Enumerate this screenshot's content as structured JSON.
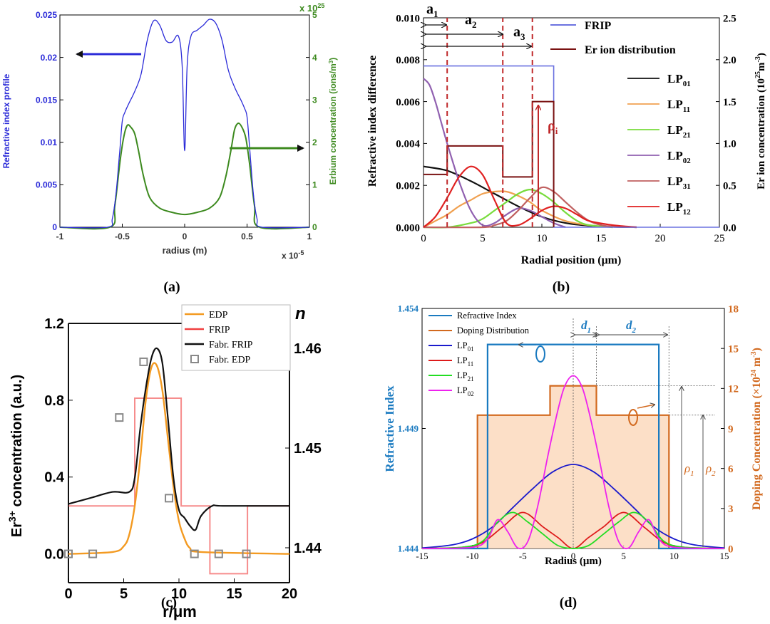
{
  "chart_data": [
    {
      "panel": "(a)",
      "type": "line",
      "xlabel": "radius (m)",
      "x_exponent": "x 10",
      "x_exponent_power": "-5",
      "ylabel_left": "Refractive index profile",
      "ylabel_right": "Erbium concentration (ions/m",
      "ylabel_right_tail": "3",
      "ylabel_right_close": ")",
      "y2_exponent": "x 10",
      "y2_exponent_power": "25",
      "xlim": [
        -1,
        1
      ],
      "ylim": [
        0,
        0.025
      ],
      "y2lim": [
        0,
        5
      ],
      "xticks": [
        "-1",
        "-0.5",
        "0",
        "0.5",
        "1"
      ],
      "yticks": [
        "0",
        "0.005",
        "0.01",
        "0.015",
        "0.02",
        "0.025"
      ],
      "y2ticks": [
        "0",
        "1",
        "2",
        "3",
        "4",
        "5"
      ],
      "colors": {
        "left": "#2b2bd8",
        "right": "#3d8a1f"
      },
      "series": [
        {
          "name": "Refractive index profile",
          "axis": "left",
          "x": [
            -1,
            -0.62,
            -0.58,
            -0.55,
            -0.52,
            -0.5,
            -0.48,
            -0.45,
            -0.4,
            -0.35,
            -0.3,
            -0.25,
            -0.2,
            -0.15,
            -0.1,
            -0.05,
            -0.02,
            0,
            0.02,
            0.05,
            0.1,
            0.15,
            0.2,
            0.25,
            0.3,
            0.35,
            0.4,
            0.45,
            0.48,
            0.5,
            0.52,
            0.55,
            0.58,
            0.62,
            1
          ],
          "y": [
            0,
            0,
            0.001,
            0.004,
            0.009,
            0.0125,
            0.0135,
            0.0145,
            0.016,
            0.018,
            0.022,
            0.0243,
            0.0238,
            0.022,
            0.0218,
            0.0225,
            0.019,
            0.009,
            0.019,
            0.0225,
            0.0232,
            0.0238,
            0.0245,
            0.024,
            0.022,
            0.0185,
            0.0165,
            0.015,
            0.014,
            0.013,
            0.0095,
            0.004,
            0.001,
            0,
            0
          ]
        },
        {
          "name": "Erbium concentration",
          "axis": "right",
          "x": [
            -1,
            -0.6,
            -0.56,
            -0.52,
            -0.49,
            -0.46,
            -0.43,
            -0.4,
            -0.37,
            -0.33,
            -0.28,
            -0.2,
            -0.1,
            0,
            0.1,
            0.2,
            0.28,
            0.33,
            0.37,
            0.4,
            0.43,
            0.46,
            0.49,
            0.52,
            0.56,
            0.6,
            1
          ],
          "y": [
            0,
            0,
            0.5,
            1.5,
            2.1,
            2.4,
            2.35,
            2.2,
            1.8,
            1.2,
            0.7,
            0.45,
            0.35,
            0.3,
            0.35,
            0.45,
            0.7,
            1.2,
            1.8,
            2.3,
            2.45,
            2.35,
            2.1,
            1.5,
            0.5,
            0,
            0
          ]
        }
      ]
    },
    {
      "panel": "(b)",
      "type": "line",
      "xlabel": "Radial position (μm)",
      "ylabel_left": "Refractive index difference",
      "ylabel_right": "Er ion concentration (10",
      "ylabel_right_power": "25",
      "ylabel_right_tail": "m",
      "ylabel_right_tail_power": "-3",
      "ylabel_right_close": ")",
      "xlim": [
        0,
        25
      ],
      "ylim": [
        0,
        0.01
      ],
      "y2lim": [
        0,
        2.5
      ],
      "xticks": [
        "0",
        "5",
        "10",
        "15",
        "20",
        "25"
      ],
      "yticks": [
        "0.000",
        "0.002",
        "0.004",
        "0.006",
        "0.008",
        "0.010"
      ],
      "y2ticks": [
        "0.0",
        "0.5",
        "1.0",
        "1.5",
        "2.0",
        "2.5"
      ],
      "annotations": {
        "a1": "a",
        "a1_sub": "1",
        "a2": "a",
        "a2_sub": "2",
        "a3": "a",
        "a3_sub": "3",
        "rho": "ρ",
        "rho_sub": "i"
      },
      "legend_main": [
        {
          "name": "FRIP",
          "color": "#6b72e0"
        },
        {
          "name": "Er ion distribution",
          "color": "#7a1212"
        }
      ],
      "legend_modes": [
        {
          "name": "LP",
          "sub": "01",
          "color": "#111111"
        },
        {
          "name": "LP",
          "sub": "11",
          "color": "#f0a050"
        },
        {
          "name": "LP",
          "sub": "21",
          "color": "#78dc3c"
        },
        {
          "name": "LP",
          "sub": "02",
          "color": "#9060b0"
        },
        {
          "name": "LP",
          "sub": "31",
          "color": "#c06060"
        },
        {
          "name": "LP",
          "sub": "12",
          "color": "#e02020"
        }
      ],
      "frip": {
        "x": [
          0,
          11,
          11,
          25
        ],
        "y": [
          0.0077,
          0.0077,
          0,
          0
        ]
      },
      "er_distribution": {
        "x": [
          0,
          2,
          2,
          6.7,
          6.7,
          9.2,
          9.2,
          11,
          11
        ],
        "y": [
          0.63,
          0.63,
          0.97,
          0.97,
          0.6,
          0.6,
          1.5,
          1.5,
          0
        ]
      },
      "dashed_x": [
        2,
        6.7,
        9.2
      ],
      "series": [
        {
          "name": "LP01",
          "x": [
            0,
            2,
            4,
            6,
            8,
            10,
            12,
            14,
            16,
            18
          ],
          "y": [
            0.0029,
            0.0027,
            0.0022,
            0.0016,
            0.001,
            0.0005,
            0.0002,
            7e-05,
            2e-05,
            0
          ]
        },
        {
          "name": "LP11",
          "x": [
            0,
            1,
            2,
            3,
            4,
            5,
            6,
            7,
            8,
            9,
            10,
            12,
            14,
            16
          ],
          "y": [
            0,
            0.0003,
            0.0006,
            0.001,
            0.0013,
            0.0016,
            0.0017,
            0.0017,
            0.0015,
            0.0012,
            0.0008,
            0.0003,
            0.0001,
            0
          ]
        },
        {
          "name": "LP21",
          "x": [
            0,
            2,
            4,
            5,
            6,
            7,
            8,
            9,
            10,
            11,
            12,
            13,
            14,
            16
          ],
          "y": [
            0,
            0,
            0.0002,
            0.0004,
            0.0008,
            0.0012,
            0.0016,
            0.0018,
            0.0016,
            0.0012,
            0.0007,
            0.0003,
            0.0001,
            0
          ]
        },
        {
          "name": "LP02",
          "x": [
            0,
            0.5,
            1,
            1.5,
            2,
            3,
            4,
            5,
            6,
            7,
            8,
            9,
            10,
            11,
            12
          ],
          "y": [
            0.0071,
            0.0068,
            0.006,
            0.005,
            0.004,
            0.0022,
            0.0008,
            0.0001,
            0.0002,
            0.0006,
            0.0009,
            0.0008,
            0.0005,
            0.0002,
            0
          ]
        },
        {
          "name": "LP31",
          "x": [
            0,
            5,
            6,
            7,
            8,
            9,
            10,
            11,
            12,
            13,
            14,
            15,
            16,
            18
          ],
          "y": [
            0,
            0,
            0.0001,
            0.0003,
            0.0008,
            0.0014,
            0.0019,
            0.0017,
            0.0012,
            0.0007,
            0.0003,
            0.0001,
            3e-05,
            0
          ]
        },
        {
          "name": "LP12",
          "x": [
            0,
            1,
            2,
            3,
            4,
            5,
            6,
            7,
            8,
            9,
            10,
            11,
            12,
            13,
            14,
            16,
            18
          ],
          "y": [
            0,
            0.0005,
            0.0014,
            0.0024,
            0.0029,
            0.0025,
            0.0013,
            0.0002,
            0.0001,
            0.0004,
            0.0008,
            0.001,
            0.0009,
            0.0006,
            0.0003,
            0.0001,
            0
          ]
        }
      ]
    },
    {
      "panel": "(c)",
      "type": "line",
      "xlabel": "r/μm",
      "ylabel_left_pre": "Er",
      "ylabel_left_sup": "3+",
      "ylabel_left_post": " concentration (a.u.)",
      "ylabel_right": "n",
      "xlim": [
        0,
        20
      ],
      "ylim": [
        -0.15,
        1.2
      ],
      "y2lim": [
        1.4365,
        1.4625
      ],
      "xticks": [
        "0",
        "5",
        "10",
        "15",
        "20"
      ],
      "yticks": [
        "0.0",
        "0.4",
        "0.8",
        "1.2"
      ],
      "y2ticks": [
        "1.44",
        "1.45",
        "1.46"
      ],
      "legend": [
        {
          "name": "EDP",
          "color": "#f39a21"
        },
        {
          "name": "FRIP",
          "color": "#f04040"
        },
        {
          "name": "Fabr. FRIP",
          "color": "#111111"
        },
        {
          "name": "Fabr. EDP",
          "color": "#888888"
        }
      ],
      "series": [
        {
          "name": "EDP",
          "x": [
            0,
            4,
            5,
            5.5,
            6,
            6.5,
            7,
            7.5,
            8,
            8.5,
            9,
            9.5,
            10,
            10.5,
            11,
            12,
            20
          ],
          "y": [
            0,
            0.01,
            0.04,
            0.1,
            0.25,
            0.5,
            0.8,
            0.97,
            0.98,
            0.85,
            0.6,
            0.35,
            0.17,
            0.08,
            0.03,
            0.01,
            0
          ]
        },
        {
          "name": "FRIP",
          "x": [
            0,
            6,
            6,
            10.2,
            10.2,
            12.8,
            12.8,
            16.2,
            16.2,
            20
          ],
          "y": [
            1.4442,
            1.4442,
            1.455,
            1.455,
            1.4442,
            1.4442,
            1.4374,
            1.4374,
            1.4442,
            1.4442
          ]
        },
        {
          "name": "Fabr. FRIP",
          "x": [
            0,
            2,
            4,
            5.5,
            6,
            6.5,
            7,
            7.5,
            8,
            8.5,
            9,
            9.5,
            10,
            10.5,
            11,
            11.5,
            12,
            13,
            14,
            20
          ],
          "y": [
            1.4444,
            1.445,
            1.4456,
            1.4456,
            1.447,
            1.452,
            1.456,
            1.459,
            1.46,
            1.4585,
            1.453,
            1.447,
            1.4438,
            1.443,
            1.4422,
            1.4418,
            1.4432,
            1.4442,
            1.4442,
            1.4442
          ]
        },
        {
          "name": "Fabr. EDP",
          "x": [
            0,
            2.2,
            4.6,
            6.8,
            9.1,
            11.4,
            13.6,
            16.1
          ],
          "y": [
            0,
            0,
            0.71,
            1.0,
            0.29,
            0,
            0,
            0
          ]
        }
      ],
      "frame_line_y": 1.2
    },
    {
      "panel": "(d)",
      "type": "line",
      "xlabel": "Radius (μm)",
      "ylabel_left": "Refractive Index",
      "ylabel_right_pre": "Doping Concentration (×10",
      "ylabel_right_power": "24",
      "ylabel_right_tail": " m",
      "ylabel_right_tail_power": "-3",
      "ylabel_right_close": ")",
      "xlim": [
        -15,
        15
      ],
      "ylim": [
        1.444,
        1.454
      ],
      "y2lim": [
        0,
        18
      ],
      "xticks": [
        "-15",
        "-10",
        "-5",
        "0",
        "5",
        "10",
        "15"
      ],
      "yticks": [
        "1.444",
        "1.449",
        "1.454"
      ],
      "y2ticks": [
        "0",
        "3",
        "6",
        "9",
        "12",
        "15",
        "18"
      ],
      "annotations": {
        "d1": "d",
        "d1_sub": "1",
        "d2": "d",
        "d2_sub": "2",
        "rho1": "ρ",
        "rho1_sub": "1",
        "rho2": "ρ",
        "rho2_sub": "2"
      },
      "legend": [
        {
          "name": "Refractive Index",
          "sub": "",
          "color": "#1a7ac0"
        },
        {
          "name": "Doping Distribution",
          "sub": "",
          "color": "#d2691e"
        },
        {
          "name": "LP",
          "sub": "01",
          "color": "#1a1acc"
        },
        {
          "name": "LP",
          "sub": "11",
          "color": "#dd1a1a"
        },
        {
          "name": "LP",
          "sub": "21",
          "color": "#22dd22"
        },
        {
          "name": "LP",
          "sub": "02",
          "color": "#ee22ee"
        }
      ],
      "refractive_index": {
        "x": [
          -15,
          -8.5,
          -8.5,
          8.5,
          8.5,
          15
        ],
        "y": [
          1.444,
          1.444,
          1.4525,
          1.4525,
          1.444,
          1.444
        ]
      },
      "doping": {
        "x": [
          -9.5,
          -9.5,
          -2.3,
          -2.3,
          2.3,
          2.3,
          9.5,
          9.5
        ],
        "y": [
          0,
          10,
          10,
          12.2,
          12.2,
          10,
          10,
          0
        ]
      },
      "series": [
        {
          "name": "LP01",
          "x": [
            -15,
            -12,
            -10,
            -8,
            -6,
            -4,
            -2,
            0,
            2,
            4,
            6,
            8,
            10,
            12,
            15
          ],
          "y": [
            1.44402,
            1.44415,
            1.4444,
            1.4449,
            1.4457,
            1.4465,
            1.4472,
            1.4475,
            1.4472,
            1.4465,
            1.4457,
            1.4449,
            1.4444,
            1.44415,
            1.44402
          ]
        },
        {
          "name": "LP11",
          "x": [
            -15,
            -11,
            -9,
            -7,
            -5,
            -3,
            -1.5,
            0,
            1.5,
            3,
            5,
            7,
            9,
            11,
            15
          ],
          "y": [
            1.444,
            1.44405,
            1.44425,
            1.4449,
            1.4455,
            1.4449,
            1.44445,
            1.444,
            1.44445,
            1.4449,
            1.4455,
            1.4449,
            1.44425,
            1.44405,
            1.444
          ]
        },
        {
          "name": "LP21",
          "x": [
            -15,
            -11,
            -9,
            -7.5,
            -6,
            -4.5,
            -3,
            -1.5,
            0,
            1.5,
            3,
            4.5,
            6,
            7.5,
            9,
            11,
            15
          ],
          "y": [
            1.444,
            1.44405,
            1.4443,
            1.4451,
            1.4455,
            1.4451,
            1.4446,
            1.44412,
            1.444,
            1.44412,
            1.4446,
            1.4451,
            1.4455,
            1.4451,
            1.4443,
            1.44405,
            1.444
          ]
        },
        {
          "name": "LP02",
          "x": [
            -15,
            -10,
            -8.5,
            -7.5,
            -6.5,
            -5.5,
            -4.5,
            -3.5,
            -2.5,
            -1.5,
            -0.8,
            0,
            0.8,
            1.5,
            2.5,
            3.5,
            4.5,
            5.5,
            6.5,
            7.5,
            8.5,
            10,
            15
          ],
          "y": [
            1.444,
            1.44405,
            1.4444,
            1.4452,
            1.4447,
            1.44402,
            1.4443,
            1.4458,
            1.4479,
            1.4498,
            1.4508,
            1.4512,
            1.4508,
            1.4498,
            1.4479,
            1.4458,
            1.4443,
            1.44402,
            1.4447,
            1.4452,
            1.4444,
            1.44405,
            1.444
          ]
        }
      ]
    }
  ],
  "captions": {
    "a": "(a)",
    "b": "(b)",
    "c": "(c)",
    "d": "(d)"
  }
}
